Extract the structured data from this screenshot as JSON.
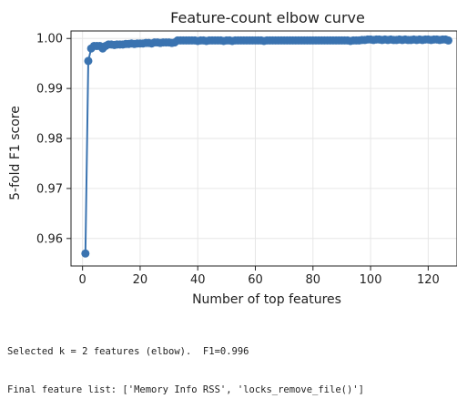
{
  "chart_data": {
    "type": "line",
    "title": "Feature-count elbow curve",
    "xlabel": "Number of top features",
    "ylabel": "5-fold F1 score",
    "xlim": [
      -4,
      130
    ],
    "ylim": [
      0.9545,
      1.0015
    ],
    "xticks": [
      0,
      20,
      40,
      60,
      80,
      100,
      120
    ],
    "yticks": [
      0.96,
      0.97,
      0.98,
      0.99,
      1.0
    ],
    "ytick_labels": [
      "0.96",
      "0.97",
      "0.98",
      "0.99",
      "1.00"
    ],
    "grid": true,
    "color": "#3a73b0",
    "series": [
      {
        "x": [
          1,
          2,
          3,
          4,
          5,
          6,
          7,
          8,
          9,
          10,
          11,
          12,
          13,
          14,
          15,
          16,
          17,
          18,
          19,
          20,
          21,
          22,
          23,
          24,
          25,
          26,
          27,
          28,
          29,
          30,
          31,
          32,
          33,
          34,
          35,
          36,
          37,
          38,
          39,
          40,
          41,
          42,
          43,
          44,
          45,
          46,
          47,
          48,
          49,
          50,
          51,
          52,
          53,
          54,
          55,
          56,
          57,
          58,
          59,
          60,
          61,
          62,
          63,
          64,
          65,
          66,
          67,
          68,
          69,
          70,
          71,
          72,
          73,
          74,
          75,
          76,
          77,
          78,
          79,
          80,
          81,
          82,
          83,
          84,
          85,
          86,
          87,
          88,
          89,
          90,
          91,
          92,
          93,
          94,
          95,
          96,
          97,
          98,
          99,
          100,
          101,
          102,
          103,
          104,
          105,
          106,
          107,
          108,
          109,
          110,
          111,
          112,
          113,
          114,
          115,
          116,
          117,
          118,
          119,
          120,
          121,
          122,
          123,
          124,
          125,
          126,
          127
        ],
        "y": [
          0.957,
          0.9955,
          0.998,
          0.9985,
          0.9985,
          0.9985,
          0.998,
          0.9985,
          0.9988,
          0.9988,
          0.9987,
          0.9988,
          0.9988,
          0.9988,
          0.9989,
          0.9989,
          0.999,
          0.9989,
          0.999,
          0.999,
          0.999,
          0.9991,
          0.9991,
          0.999,
          0.9992,
          0.9992,
          0.9991,
          0.9992,
          0.9992,
          0.9992,
          0.9991,
          0.9992,
          0.9996,
          0.9996,
          0.9996,
          0.9996,
          0.9996,
          0.9996,
          0.9996,
          0.9995,
          0.9996,
          0.9996,
          0.9995,
          0.9996,
          0.9996,
          0.9996,
          0.9996,
          0.9996,
          0.9995,
          0.9996,
          0.9996,
          0.9995,
          0.9996,
          0.9996,
          0.9996,
          0.9996,
          0.9996,
          0.9996,
          0.9996,
          0.9996,
          0.9996,
          0.9996,
          0.9995,
          0.9996,
          0.9996,
          0.9996,
          0.9996,
          0.9996,
          0.9996,
          0.9996,
          0.9996,
          0.9996,
          0.9996,
          0.9996,
          0.9996,
          0.9996,
          0.9996,
          0.9996,
          0.9996,
          0.9996,
          0.9996,
          0.9996,
          0.9996,
          0.9996,
          0.9996,
          0.9996,
          0.9996,
          0.9996,
          0.9996,
          0.9996,
          0.9996,
          0.9996,
          0.9995,
          0.9996,
          0.9996,
          0.9996,
          0.9997,
          0.9997,
          0.9998,
          0.9998,
          0.9997,
          0.9998,
          0.9998,
          0.9997,
          0.9998,
          0.9997,
          0.9998,
          0.9997,
          0.9997,
          0.9998,
          0.9997,
          0.9998,
          0.9997,
          0.9997,
          0.9998,
          0.9997,
          0.9998,
          0.9997,
          0.9998,
          0.9998,
          0.9997,
          0.9998,
          0.9998,
          0.9997,
          0.9998,
          0.9998,
          0.9996
        ]
      }
    ]
  },
  "console": {
    "line1": "Selected k = 2 features (elbow).  F1=0.996",
    "line2": "Final feature list: ['Memory Info RSS', 'locks_remove_file()']"
  }
}
